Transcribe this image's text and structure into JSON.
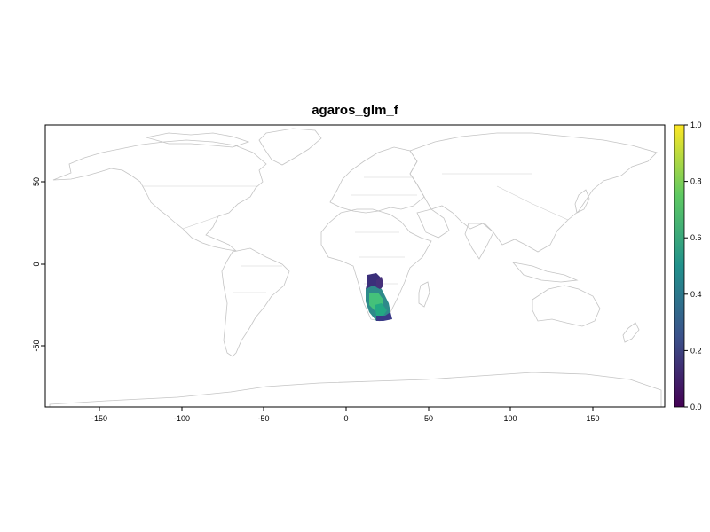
{
  "map": {
    "title": "agaros_glm_f",
    "x_ticks": [
      "-150",
      "-100",
      "-50",
      "0",
      "50",
      "100",
      "150"
    ],
    "y_ticks": [
      "50",
      "0",
      "-50"
    ],
    "extent": {
      "lon": [
        -180,
        180
      ],
      "lat": [
        -90,
        90
      ]
    }
  },
  "legend": {
    "ticks": [
      "1.0",
      "0.8",
      "0.6",
      "0.4",
      "0.2",
      "0.0"
    ],
    "range": [
      0,
      1
    ],
    "palette": [
      "#440154",
      "#3b528b",
      "#21918c",
      "#5ec962",
      "#fde725"
    ]
  },
  "colors": {
    "frame": "#000000",
    "coastline": "#c4c4c4"
  }
}
